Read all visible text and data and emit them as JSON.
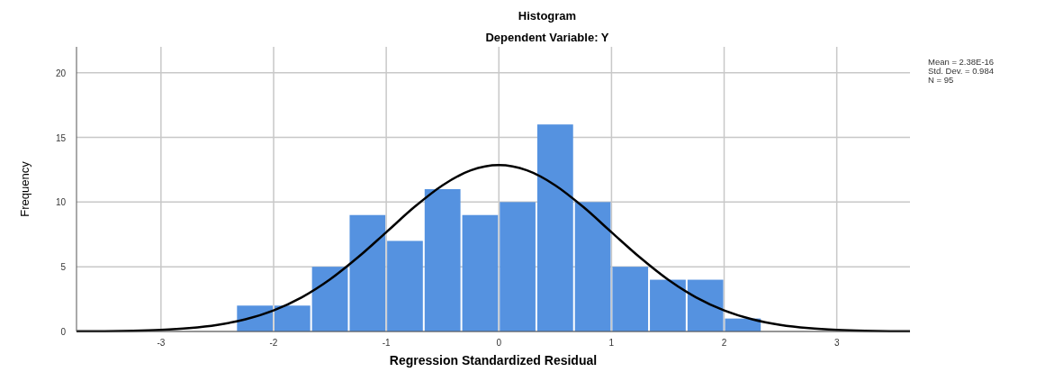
{
  "chart_data": {
    "type": "histogram",
    "title": "Histogram",
    "subtitle": "Dependent Variable: Y",
    "xlabel": "Regression Standardized Residual",
    "ylabel": "Frequency",
    "annotations": [
      "Mean = 2.38E-16",
      "Std. Dev. = 0.984",
      "N = 95"
    ],
    "series": [
      {
        "color": "#5592e0",
        "bins": [
          -2.333,
          -2,
          -1.667,
          -1.333,
          -1,
          -0.667,
          -0.333,
          0,
          0.333,
          0.667,
          1,
          1.333,
          1.667,
          2,
          2.333
        ],
        "values": [
          2,
          2,
          5,
          9,
          7,
          11,
          9,
          10,
          16,
          10,
          5,
          4,
          4,
          1
        ]
      },
      {
        "type": "line",
        "color": "#000000",
        "x": [
          -3.75,
          -3.5,
          -3.25,
          -3,
          -2.75,
          -2.5,
          -2.25,
          -2,
          -1.75,
          -1.5,
          -1.25,
          -1,
          -0.75,
          -0.5,
          -0.25,
          0,
          0.25,
          0.5,
          0.75,
          1,
          1.25,
          1.5,
          1.75,
          2,
          2.25,
          2.5,
          2.75,
          3,
          3.25,
          3.5,
          3.65
        ],
        "values": [
          0.01,
          0.02,
          0.05,
          0.12,
          0.26,
          0.51,
          0.94,
          1.63,
          2.64,
          4.02,
          5.74,
          7.67,
          9.62,
          11.3,
          12.45,
          12.86,
          12.45,
          11.3,
          9.62,
          7.67,
          5.74,
          4.02,
          2.64,
          1.63,
          0.94,
          0.51,
          0.26,
          0.12,
          0.05,
          0.02,
          0.01
        ]
      }
    ],
    "xlim": [
      -3.75,
      3.65
    ],
    "xticks": [
      -3,
      -2,
      -1,
      0,
      1,
      2,
      3
    ],
    "ylim": [
      0,
      22
    ],
    "yticks": [
      0,
      5,
      10,
      15,
      20
    ],
    "grid": true
  }
}
